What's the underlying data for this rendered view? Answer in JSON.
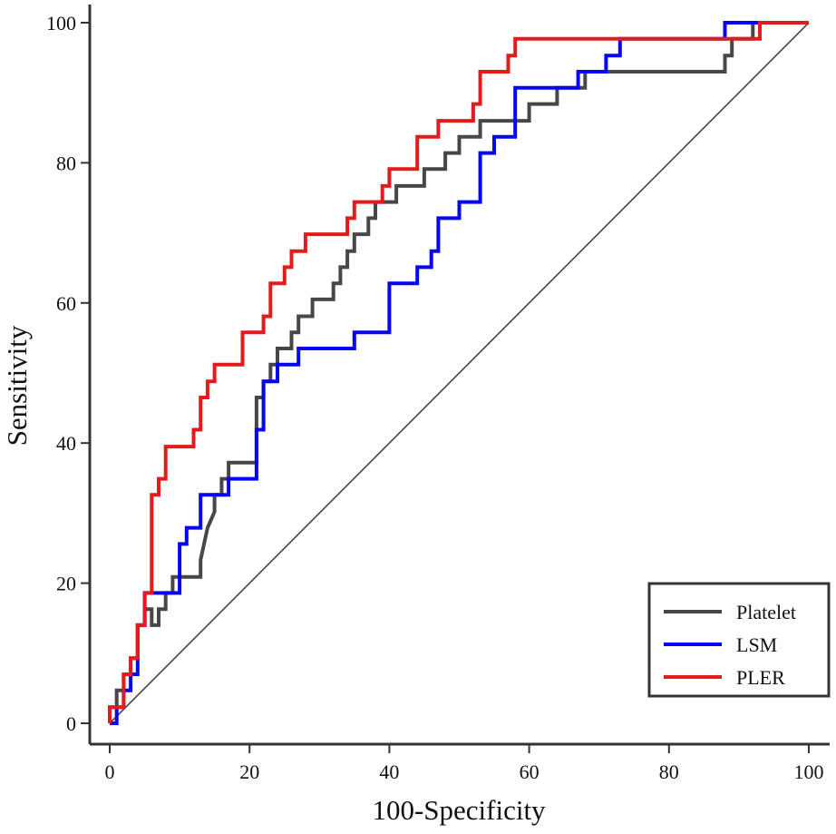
{
  "chart_data": {
    "type": "line",
    "title": "",
    "xlabel": "100-Specificity",
    "ylabel": "Sensitivity",
    "xlim": [
      0,
      100
    ],
    "ylim": [
      0,
      100
    ],
    "xticks": [
      0,
      20,
      40,
      60,
      80,
      100
    ],
    "yticks": [
      0,
      20,
      40,
      60,
      80,
      100
    ],
    "grid": false,
    "legend_position": "bottom-right",
    "reference_line": {
      "name": "chance-diagonal",
      "x": [
        0,
        100
      ],
      "y": [
        0,
        100
      ],
      "color": "#444444"
    },
    "series": [
      {
        "name": "Platelet",
        "color": "#474747",
        "x": [
          0,
          0,
          1,
          1,
          2,
          2,
          3,
          3,
          4,
          4,
          5,
          5,
          6,
          6,
          7,
          7,
          8,
          8,
          9,
          9,
          10,
          10,
          13,
          13,
          14,
          15,
          15,
          16,
          16,
          17,
          17,
          18,
          18,
          21,
          21,
          22,
          22,
          23,
          23,
          24,
          24,
          25,
          26,
          26,
          27,
          27,
          28,
          28,
          29,
          29,
          32,
          32,
          33,
          33,
          34,
          34,
          35,
          35,
          37,
          37,
          38,
          38,
          39,
          41,
          41,
          42,
          42,
          43,
          43,
          45,
          45,
          47,
          47,
          48,
          48,
          50,
          50,
          53,
          53,
          55,
          55,
          60,
          60,
          64,
          64,
          66,
          66,
          68,
          68,
          72,
          72,
          75,
          75,
          79,
          79,
          88,
          88,
          89,
          89,
          92,
          92,
          100
        ],
        "y": [
          0,
          2.3,
          2.3,
          4.7,
          4.7,
          7,
          7,
          9.3,
          9.3,
          14,
          14,
          16.3,
          16.3,
          14,
          14,
          16.3,
          16.3,
          18.6,
          18.6,
          20.9,
          20.9,
          20.9,
          20.9,
          23.3,
          27.9,
          30.2,
          32.6,
          32.6,
          34.9,
          34.9,
          37.2,
          37.2,
          37.2,
          37.2,
          46.5,
          46.5,
          48.8,
          48.8,
          51.2,
          51.2,
          53.5,
          53.5,
          53.5,
          55.8,
          55.8,
          58.1,
          58.1,
          58.1,
          58.1,
          60.5,
          60.5,
          62.8,
          62.8,
          65.1,
          65.1,
          67.4,
          67.4,
          69.8,
          69.8,
          72.1,
          72.1,
          74.4,
          74.4,
          74.4,
          76.7,
          76.7,
          76.7,
          76.7,
          76.7,
          76.7,
          79.1,
          79.1,
          79.1,
          79.1,
          81.4,
          81.4,
          83.7,
          83.7,
          86,
          86,
          86,
          86,
          88.4,
          88.4,
          90.7,
          90.7,
          90.7,
          90.7,
          93,
          93,
          93,
          93,
          93,
          93,
          93,
          93,
          95.3,
          95.3,
          97.7,
          97.7,
          100,
          100
        ]
      },
      {
        "name": "LSM",
        "color": "#0505f2",
        "x": [
          0,
          1,
          1,
          2,
          2,
          3,
          3,
          4,
          4,
          5,
          5,
          6,
          6,
          10,
          10,
          11,
          11,
          13,
          13,
          17,
          17,
          21,
          21,
          22,
          22,
          24,
          24,
          27,
          27,
          35,
          35,
          40,
          40,
          44,
          44,
          46,
          46,
          47,
          47,
          48,
          48,
          50,
          50,
          53,
          53,
          55,
          55,
          58,
          58,
          67,
          67,
          71,
          71,
          73,
          73,
          75,
          75,
          88,
          88,
          92,
          92,
          100
        ],
        "y": [
          0,
          0,
          2.3,
          2.3,
          4.7,
          4.7,
          7,
          7,
          14,
          14,
          18.6,
          18.6,
          18.6,
          18.6,
          25.6,
          25.6,
          27.9,
          27.9,
          32.6,
          32.6,
          34.9,
          34.9,
          41.9,
          41.9,
          48.8,
          48.8,
          51.2,
          51.2,
          53.5,
          53.5,
          55.8,
          55.8,
          62.8,
          62.8,
          65.1,
          65.1,
          67.4,
          67.4,
          72.1,
          72.1,
          72.1,
          72.1,
          74.4,
          74.4,
          81.4,
          81.4,
          83.7,
          83.7,
          90.7,
          90.7,
          93,
          93,
          95.3,
          95.3,
          97.7,
          97.7,
          97.7,
          97.7,
          100,
          100,
          100,
          100
        ]
      },
      {
        "name": "PLER",
        "color": "#e41a1c",
        "x": [
          0,
          0,
          2,
          2,
          3,
          3,
          4,
          4,
          5,
          5,
          6,
          6,
          7,
          7,
          8,
          8,
          12,
          12,
          13,
          13,
          14,
          14,
          15,
          15,
          19,
          19,
          22,
          22,
          23,
          23,
          24,
          24,
          25,
          25,
          26,
          26,
          28,
          28,
          34,
          34,
          35,
          35,
          39,
          39,
          40,
          40,
          44,
          44,
          47,
          47,
          52,
          52,
          53,
          53,
          57,
          57,
          58,
          58,
          93,
          93,
          100
        ],
        "y": [
          0,
          2.3,
          2.3,
          7,
          7,
          9.3,
          9.3,
          14,
          14,
          18.6,
          18.6,
          32.6,
          32.6,
          34.9,
          34.9,
          39.5,
          39.5,
          41.9,
          41.9,
          46.5,
          46.5,
          48.8,
          48.8,
          51.2,
          51.2,
          55.8,
          55.8,
          58.1,
          58.1,
          62.8,
          62.8,
          62.8,
          62.8,
          65.1,
          65.1,
          67.4,
          67.4,
          69.8,
          69.8,
          72.1,
          72.1,
          74.4,
          74.4,
          76.7,
          76.7,
          79.1,
          79.1,
          83.7,
          83.7,
          86,
          86,
          88.4,
          88.4,
          93,
          93,
          95.3,
          95.3,
          97.7,
          97.7,
          100,
          100
        ]
      }
    ]
  }
}
